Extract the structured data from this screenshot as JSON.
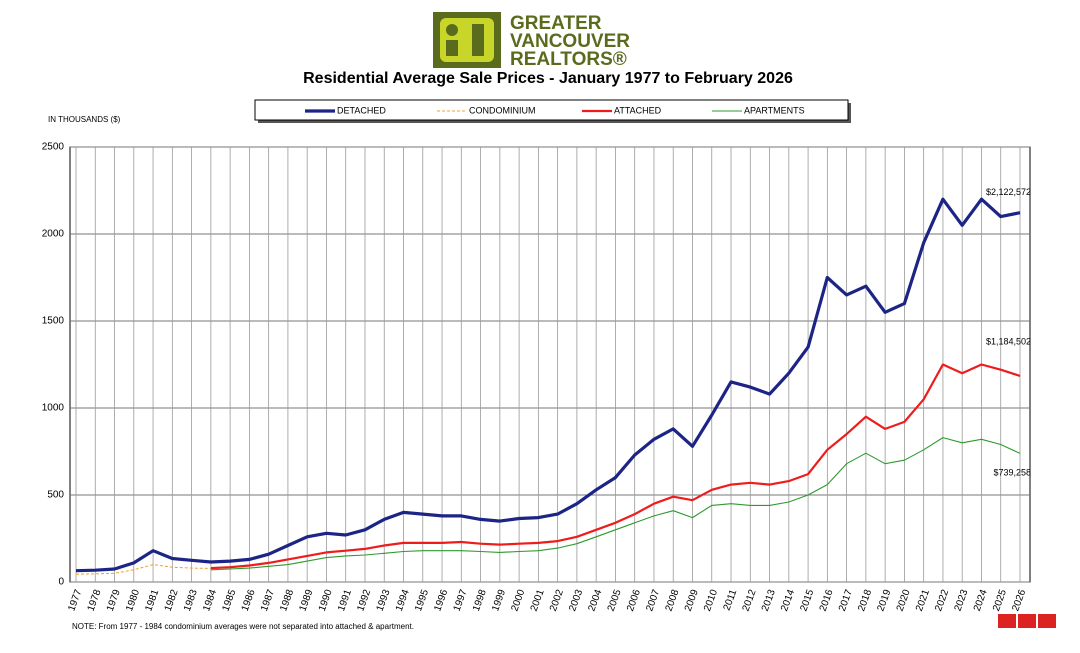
{
  "header": {
    "logo_text": [
      "GREATER",
      "VANCOUVER",
      "REALTORS®"
    ]
  },
  "chart_data": {
    "type": "line",
    "title": "Residential Average Sale Prices  -  January 1977 to February 2026",
    "y_axis_label": "IN THOUSANDS ($)",
    "note": "NOTE:  From 1977 - 1984 condominium averages were not separated into attached & apartment.",
    "x": [
      1977,
      1978,
      1979,
      1980,
      1981,
      1982,
      1983,
      1984,
      1985,
      1986,
      1987,
      1988,
      1989,
      1990,
      1991,
      1992,
      1993,
      1994,
      1995,
      1996,
      1997,
      1998,
      1999,
      2000,
      2001,
      2002,
      2003,
      2004,
      2005,
      2006,
      2007,
      2008,
      2009,
      2010,
      2011,
      2012,
      2013,
      2014,
      2015,
      2016,
      2017,
      2018,
      2019,
      2020,
      2021,
      2022,
      2023,
      2024,
      2025,
      2026
    ],
    "xlim": [
      1977,
      2026
    ],
    "xticks": [
      1977,
      1978,
      1979,
      1980,
      1981,
      1982,
      1983,
      1984,
      1985,
      1986,
      1987,
      1988,
      1989,
      1990,
      1991,
      1992,
      1993,
      1994,
      1995,
      1996,
      1997,
      1998,
      1999,
      2000,
      2001,
      2002,
      2003,
      2004,
      2005,
      2006,
      2007,
      2008,
      2009,
      2010,
      2011,
      2012,
      2013,
      2014,
      2015,
      2016,
      2017,
      2018,
      2019,
      2020,
      2021,
      2022,
      2023,
      2024,
      2025,
      2026
    ],
    "ylim": [
      0,
      2500
    ],
    "yticks": [
      0,
      500,
      1000,
      1500,
      2000,
      2500
    ],
    "grid": true,
    "series": [
      {
        "name": "DETACHED",
        "color": "#1c2485",
        "end_label": "$2,122,572",
        "values": [
          65,
          68,
          75,
          110,
          180,
          135,
          125,
          115,
          120,
          130,
          160,
          210,
          260,
          280,
          270,
          300,
          360,
          400,
          390,
          380,
          380,
          360,
          350,
          365,
          370,
          390,
          450,
          530,
          600,
          730,
          820,
          880,
          780,
          960,
          1150,
          1120,
          1080,
          1200,
          1350,
          1750,
          1650,
          1700,
          1550,
          1600,
          1950,
          2200,
          2050,
          2200,
          2100,
          2122.572
        ]
      },
      {
        "name": "CONDOMINIUM",
        "color": "#f0a030",
        "values": [
          45,
          47,
          50,
          70,
          100,
          85,
          80,
          78,
          null,
          null,
          null,
          null,
          null,
          null,
          null,
          null,
          null,
          null,
          null,
          null,
          null,
          null,
          null,
          null,
          null,
          null,
          null,
          null,
          null,
          null,
          null,
          null,
          null,
          null,
          null,
          null,
          null,
          null,
          null,
          null,
          null,
          null,
          null,
          null,
          null,
          null,
          null,
          null,
          null,
          null
        ]
      },
      {
        "name": "ATTACHED",
        "color": "#ee1c1c",
        "end_label": "$1,184,502",
        "values": [
          null,
          null,
          null,
          null,
          null,
          null,
          null,
          80,
          85,
          95,
          110,
          130,
          150,
          170,
          180,
          190,
          210,
          225,
          225,
          225,
          230,
          220,
          215,
          220,
          225,
          235,
          260,
          300,
          340,
          390,
          450,
          490,
          470,
          530,
          560,
          570,
          560,
          580,
          620,
          760,
          850,
          950,
          880,
          920,
          1050,
          1250,
          1200,
          1250,
          1220,
          1184.502
        ]
      },
      {
        "name": "APARTMENTS",
        "color": "#2e9a2e",
        "end_label": "$739,258",
        "values": [
          null,
          null,
          null,
          null,
          null,
          null,
          null,
          70,
          75,
          80,
          90,
          100,
          120,
          140,
          150,
          155,
          165,
          175,
          180,
          180,
          180,
          175,
          170,
          175,
          180,
          195,
          220,
          260,
          300,
          340,
          380,
          410,
          370,
          440,
          450,
          440,
          440,
          460,
          500,
          560,
          680,
          740,
          680,
          700,
          760,
          830,
          800,
          820,
          790,
          739.258
        ]
      }
    ]
  }
}
